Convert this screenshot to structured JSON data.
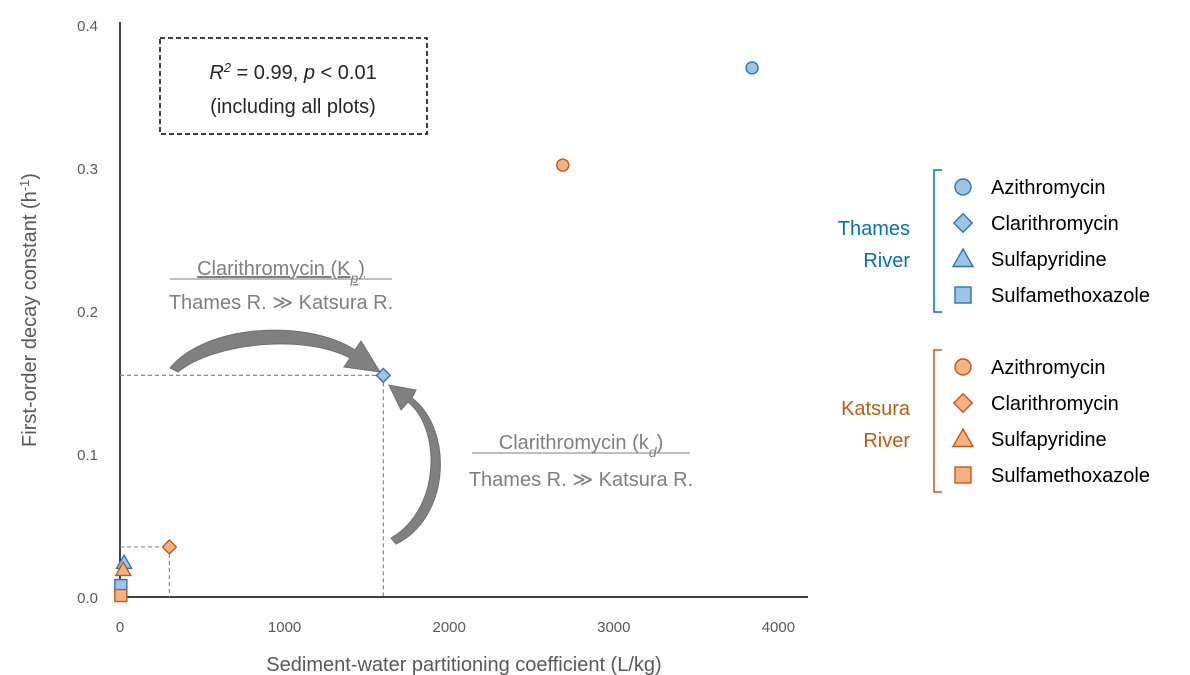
{
  "chart_data": {
    "type": "scatter",
    "xlabel": "Sediment-water partitioning coefficient (L/kg)",
    "ylabel_main": "First-order decay constant (h",
    "ylabel_sup": "-1",
    "ylabel_tail": ")",
    "xlim": [
      0,
      4200
    ],
    "ylim": [
      0,
      0.4
    ],
    "xticks": [
      0,
      1000,
      2000,
      3000,
      4000
    ],
    "xtick_labels": [
      "0",
      "1000",
      "2000",
      "3000",
      "4000"
    ],
    "yticks": [
      0,
      0.1,
      0.2,
      0.3,
      0.4
    ],
    "ytick_labels": [
      "0.0",
      "0.1",
      "0.2",
      "0.3",
      "0.4"
    ],
    "grid": false,
    "legend_position": "right",
    "groups": [
      {
        "label_line1": "Thames",
        "label_line2": "River",
        "color": "#0070c0",
        "fill": "#9dc3e6",
        "stroke": "#2e75b6",
        "series": [
          {
            "name": "Azithromycin",
            "marker": "circle",
            "x": [
              3840
            ],
            "y": [
              0.37
            ]
          },
          {
            "name": "Clarithromycin",
            "marker": "diamond",
            "x": [
              1600
            ],
            "y": [
              0.155
            ]
          },
          {
            "name": "Sulfapyridine",
            "marker": "triangle",
            "x": [
              25
            ],
            "y": [
              0.024
            ]
          },
          {
            "name": "Sulfamethoxazole",
            "marker": "square",
            "x": [
              5
            ],
            "y": [
              0.008
            ]
          }
        ]
      },
      {
        "label_line1": "Katsura",
        "label_line2": "River",
        "color": "#c55a11",
        "fill": "#f4b183",
        "stroke": "#c55a11",
        "series": [
          {
            "name": "Azithromycin",
            "marker": "circle",
            "x": [
              2690
            ],
            "y": [
              0.302
            ]
          },
          {
            "name": "Clarithromycin",
            "marker": "diamond",
            "x": [
              300
            ],
            "y": [
              0.035
            ]
          },
          {
            "name": "Sulfapyridine",
            "marker": "triangle",
            "x": [
              20
            ],
            "y": [
              0.019
            ]
          },
          {
            "name": "Sulfamethoxazole",
            "marker": "square",
            "x": [
              5
            ],
            "y": [
              0.001
            ]
          }
        ]
      }
    ],
    "stats_box": {
      "line1_r": "R",
      "line1_sup": "2",
      "line1_mid": " = 0.99, ",
      "line1_p": "p",
      "line1_tail": " < 0.01",
      "line2": "(including all plots)"
    },
    "annotations": [
      {
        "title_main": "Clarithromycin (K",
        "title_sub": "p",
        "title_tail": ")",
        "subtitle": "Thames R. ≫ Katsura R."
      },
      {
        "title_main": "Clarithromycin (k",
        "title_sub": "d",
        "title_tail": ")",
        "subtitle": "Thames R. ≫ Katsura R."
      }
    ],
    "guide_lines": {
      "thames_clarithromycin": {
        "x": 1600,
        "y": 0.155
      },
      "katsura_clarithromycin": {
        "x": 300,
        "y": 0.035
      }
    }
  }
}
